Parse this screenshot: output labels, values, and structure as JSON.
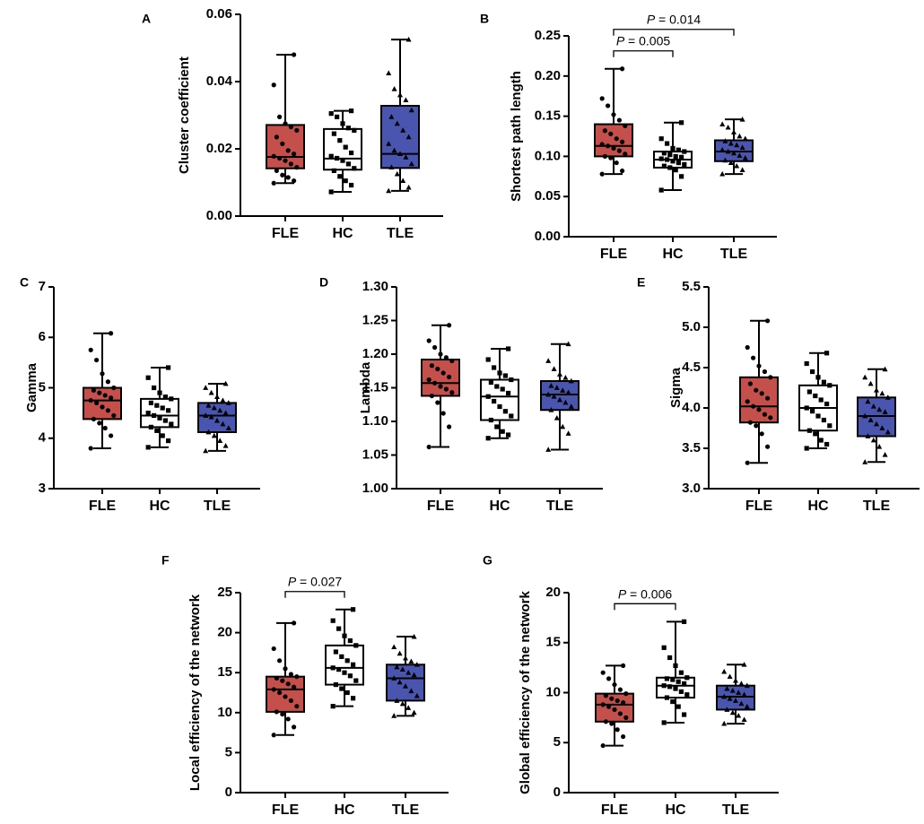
{
  "colors": {
    "FLE": "#c5504b",
    "HC": "#ffffff",
    "TLE": "#4a55b0",
    "axis": "#000000"
  },
  "chart_data": [
    {
      "id": "A",
      "panel_label": "A",
      "type": "box",
      "ylabel": "Cluster coefficient",
      "categories": [
        "FLE",
        "HC",
        "TLE"
      ],
      "ylim": [
        0,
        0.06
      ],
      "yticks": [
        "0.00",
        "0.02",
        "0.04",
        "0.06"
      ],
      "series": [
        {
          "name": "FLE",
          "min": 0.0098,
          "q1": 0.0142,
          "median": 0.0176,
          "q3": 0.0271,
          "max": 0.048,
          "points": [
            0.0098,
            0.0105,
            0.0115,
            0.0122,
            0.0135,
            0.0145,
            0.0155,
            0.0165,
            0.0172,
            0.0178,
            0.0185,
            0.0195,
            0.0215,
            0.0235,
            0.0255,
            0.0265,
            0.0275,
            0.0295,
            0.039,
            0.048
          ]
        },
        {
          "name": "HC",
          "min": 0.0072,
          "q1": 0.0138,
          "median": 0.0171,
          "q3": 0.0259,
          "max": 0.0313,
          "points": [
            0.0072,
            0.0092,
            0.0105,
            0.0118,
            0.0135,
            0.0142,
            0.0155,
            0.0165,
            0.0172,
            0.0178,
            0.0188,
            0.0205,
            0.0225,
            0.0245,
            0.0255,
            0.0262,
            0.0275,
            0.0295,
            0.0305,
            0.0313
          ]
        },
        {
          "name": "TLE",
          "min": 0.0075,
          "q1": 0.0143,
          "median": 0.0185,
          "q3": 0.0328,
          "max": 0.0525,
          "points": [
            0.0075,
            0.0085,
            0.0105,
            0.0125,
            0.0145,
            0.0155,
            0.0175,
            0.0185,
            0.0195,
            0.0215,
            0.0235,
            0.0255,
            0.0275,
            0.0295,
            0.0315,
            0.0345,
            0.036,
            0.0378,
            0.0425,
            0.0525
          ]
        }
      ],
      "comparisons": []
    },
    {
      "id": "B",
      "panel_label": "B",
      "type": "box",
      "ylabel": "Shortest path length",
      "categories": [
        "FLE",
        "HC",
        "TLE"
      ],
      "ylim": [
        0,
        0.25
      ],
      "yticks": [
        "0.00",
        "0.05",
        "0.10",
        "0.15",
        "0.20",
        "0.25"
      ],
      "series": [
        {
          "name": "FLE",
          "min": 0.078,
          "q1": 0.1,
          "median": 0.113,
          "q3": 0.14,
          "max": 0.209,
          "points": [
            0.078,
            0.082,
            0.092,
            0.098,
            0.1,
            0.103,
            0.107,
            0.11,
            0.113,
            0.115,
            0.118,
            0.122,
            0.128,
            0.132,
            0.138,
            0.145,
            0.152,
            0.163,
            0.172,
            0.209
          ]
        },
        {
          "name": "HC",
          "min": 0.058,
          "q1": 0.086,
          "median": 0.096,
          "q3": 0.106,
          "max": 0.142,
          "points": [
            0.058,
            0.075,
            0.083,
            0.086,
            0.088,
            0.09,
            0.092,
            0.094,
            0.096,
            0.097,
            0.099,
            0.1,
            0.102,
            0.104,
            0.106,
            0.108,
            0.11,
            0.116,
            0.122,
            0.142
          ]
        },
        {
          "name": "TLE",
          "min": 0.078,
          "q1": 0.094,
          "median": 0.106,
          "q3": 0.12,
          "max": 0.146,
          "points": [
            0.078,
            0.083,
            0.088,
            0.092,
            0.095,
            0.098,
            0.101,
            0.104,
            0.106,
            0.108,
            0.111,
            0.114,
            0.116,
            0.119,
            0.122,
            0.125,
            0.13,
            0.136,
            0.14,
            0.146
          ]
        }
      ],
      "comparisons": [
        {
          "from": "FLE",
          "to": "HC",
          "label": "= 0.005",
          "p_symbol": "P",
          "y": 0.225,
          "tier": 0
        },
        {
          "from": "FLE",
          "to": "TLE",
          "label": "= 0.014",
          "p_symbol": "P",
          "y": 0.248,
          "tier": 1
        }
      ]
    },
    {
      "id": "C",
      "panel_label": "C",
      "type": "box",
      "ylabel": "Gamma",
      "categories": [
        "FLE",
        "HC",
        "TLE"
      ],
      "ylim": [
        3,
        7
      ],
      "yticks": [
        "3",
        "4",
        "5",
        "6",
        "7"
      ],
      "series": [
        {
          "name": "FLE",
          "min": 3.8,
          "q1": 4.38,
          "median": 4.75,
          "q3": 5.0,
          "max": 6.08,
          "points": [
            3.8,
            4.05,
            4.2,
            4.3,
            4.38,
            4.45,
            4.55,
            4.62,
            4.7,
            4.75,
            4.8,
            4.85,
            4.9,
            4.95,
            5.0,
            5.12,
            5.28,
            5.55,
            5.75,
            6.08
          ]
        },
        {
          "name": "HC",
          "min": 3.82,
          "q1": 4.22,
          "median": 4.45,
          "q3": 4.78,
          "max": 5.4,
          "points": [
            3.82,
            3.95,
            4.05,
            4.15,
            4.22,
            4.28,
            4.35,
            4.4,
            4.45,
            4.5,
            4.55,
            4.6,
            4.65,
            4.7,
            4.78,
            4.82,
            4.9,
            5.0,
            5.2,
            5.4
          ]
        },
        {
          "name": "TLE",
          "min": 3.75,
          "q1": 4.12,
          "median": 4.45,
          "q3": 4.7,
          "max": 5.08,
          "points": [
            3.75,
            3.85,
            3.95,
            4.05,
            4.12,
            4.2,
            4.28,
            4.35,
            4.42,
            4.45,
            4.5,
            4.55,
            4.6,
            4.65,
            4.7,
            4.75,
            4.82,
            4.9,
            5.0,
            5.08
          ]
        }
      ],
      "comparisons": []
    },
    {
      "id": "D",
      "panel_label": "D",
      "type": "box",
      "ylabel": "Lambda",
      "categories": [
        "FLE",
        "HC",
        "TLE"
      ],
      "ylim": [
        1.0,
        1.3
      ],
      "yticks": [
        "1.00",
        "1.05",
        "1.10",
        "1.15",
        "1.20",
        "1.25",
        "1.30"
      ],
      "series": [
        {
          "name": "FLE",
          "min": 1.062,
          "q1": 1.138,
          "median": 1.157,
          "q3": 1.192,
          "max": 1.243,
          "points": [
            1.062,
            1.092,
            1.112,
            1.128,
            1.138,
            1.143,
            1.148,
            1.152,
            1.157,
            1.162,
            1.166,
            1.172,
            1.178,
            1.183,
            1.19,
            1.195,
            1.2,
            1.21,
            1.22,
            1.243
          ]
        },
        {
          "name": "HC",
          "min": 1.075,
          "q1": 1.102,
          "median": 1.137,
          "q3": 1.162,
          "max": 1.208,
          "points": [
            1.075,
            1.08,
            1.085,
            1.092,
            1.102,
            1.108,
            1.115,
            1.122,
            1.13,
            1.137,
            1.142,
            1.148,
            1.152,
            1.158,
            1.162,
            1.168,
            1.172,
            1.18,
            1.192,
            1.208
          ]
        },
        {
          "name": "TLE",
          "min": 1.058,
          "q1": 1.117,
          "median": 1.14,
          "q3": 1.16,
          "max": 1.215,
          "points": [
            1.058,
            1.082,
            1.092,
            1.105,
            1.117,
            1.122,
            1.128,
            1.132,
            1.137,
            1.14,
            1.143,
            1.146,
            1.15,
            1.153,
            1.16,
            1.165,
            1.17,
            1.178,
            1.19,
            1.215
          ]
        }
      ],
      "comparisons": []
    },
    {
      "id": "E",
      "panel_label": "E",
      "type": "box",
      "ylabel": "Sigma",
      "categories": [
        "FLE",
        "HC",
        "TLE"
      ],
      "ylim": [
        3.0,
        5.5
      ],
      "yticks": [
        "3.0",
        "3.5",
        "4.0",
        "4.5",
        "5.0",
        "5.5"
      ],
      "series": [
        {
          "name": "FLE",
          "min": 3.32,
          "q1": 3.82,
          "median": 4.02,
          "q3": 4.38,
          "max": 5.08,
          "points": [
            3.32,
            3.52,
            3.68,
            3.78,
            3.82,
            3.88,
            3.92,
            3.98,
            4.02,
            4.08,
            4.12,
            4.18,
            4.22,
            4.3,
            4.38,
            4.45,
            4.52,
            4.62,
            4.75,
            5.08
          ]
        },
        {
          "name": "HC",
          "min": 3.5,
          "q1": 3.72,
          "median": 4.0,
          "q3": 4.28,
          "max": 4.68,
          "points": [
            3.5,
            3.55,
            3.6,
            3.68,
            3.72,
            3.78,
            3.85,
            3.9,
            3.96,
            4.0,
            4.05,
            4.1,
            4.15,
            4.2,
            4.28,
            4.32,
            4.38,
            4.45,
            4.55,
            4.68
          ]
        },
        {
          "name": "TLE",
          "min": 3.33,
          "q1": 3.65,
          "median": 3.9,
          "q3": 4.13,
          "max": 4.48,
          "points": [
            3.33,
            3.42,
            3.52,
            3.6,
            3.65,
            3.7,
            3.75,
            3.8,
            3.85,
            3.9,
            3.95,
            3.98,
            4.02,
            4.08,
            4.13,
            4.18,
            4.22,
            4.3,
            4.38,
            4.48
          ]
        }
      ],
      "comparisons": []
    },
    {
      "id": "F",
      "panel_label": "F",
      "type": "box",
      "ylabel": "Local efficiency of the network",
      "categories": [
        "FLE",
        "HC",
        "TLE"
      ],
      "ylim": [
        0,
        25
      ],
      "yticks": [
        "0",
        "5",
        "10",
        "15",
        "20",
        "25"
      ],
      "series": [
        {
          "name": "FLE",
          "min": 7.2,
          "q1": 10.1,
          "median": 12.9,
          "q3": 14.5,
          "max": 21.2,
          "points": [
            7.2,
            8.2,
            9.2,
            9.8,
            10.1,
            10.8,
            11.5,
            12.0,
            12.5,
            12.9,
            13.2,
            13.6,
            14.0,
            14.3,
            14.5,
            14.8,
            15.5,
            16.5,
            18.0,
            21.2
          ]
        },
        {
          "name": "HC",
          "min": 10.8,
          "q1": 13.5,
          "median": 15.6,
          "q3": 18.4,
          "max": 22.9,
          "points": [
            10.8,
            11.8,
            12.5,
            13.0,
            13.5,
            14.0,
            14.6,
            15.0,
            15.4,
            15.6,
            16.0,
            16.5,
            17.0,
            17.6,
            18.4,
            19.0,
            19.6,
            20.5,
            21.5,
            22.9
          ]
        },
        {
          "name": "TLE",
          "min": 9.6,
          "q1": 11.5,
          "median": 14.3,
          "q3": 16.0,
          "max": 19.5,
          "points": [
            9.6,
            10.0,
            10.6,
            11.1,
            11.5,
            12.1,
            12.7,
            13.3,
            13.8,
            14.3,
            14.7,
            15.0,
            15.4,
            15.7,
            16.0,
            16.4,
            16.8,
            17.4,
            18.2,
            19.5
          ]
        }
      ],
      "comparisons": [
        {
          "from": "FLE",
          "to": "HC",
          "label": "= 0.027",
          "p_symbol": "P",
          "y": 24.0,
          "tier": 0
        }
      ]
    },
    {
      "id": "G",
      "panel_label": "G",
      "type": "box",
      "ylabel": "Global efficiency of the network",
      "categories": [
        "FLE",
        "HC",
        "TLE"
      ],
      "ylim": [
        0,
        20
      ],
      "yticks": [
        "0",
        "5",
        "10",
        "15",
        "20"
      ],
      "series": [
        {
          "name": "FLE",
          "min": 4.7,
          "q1": 7.1,
          "median": 8.8,
          "q3": 9.9,
          "max": 12.7,
          "points": [
            4.7,
            5.6,
            6.3,
            6.9,
            7.1,
            7.5,
            7.9,
            8.3,
            8.6,
            8.8,
            9.0,
            9.2,
            9.4,
            9.7,
            9.9,
            10.3,
            10.8,
            11.4,
            12.0,
            12.7
          ]
        },
        {
          "name": "HC",
          "min": 7.0,
          "q1": 9.5,
          "median": 10.7,
          "q3": 11.5,
          "max": 17.1,
          "points": [
            7.0,
            7.8,
            8.6,
            9.1,
            9.5,
            9.8,
            10.1,
            10.4,
            10.6,
            10.7,
            10.9,
            11.1,
            11.3,
            11.4,
            11.5,
            12.0,
            12.7,
            13.5,
            14.5,
            17.1
          ]
        },
        {
          "name": "TLE",
          "min": 6.9,
          "q1": 8.3,
          "median": 9.6,
          "q3": 10.7,
          "max": 12.8,
          "points": [
            6.9,
            7.3,
            7.7,
            8.0,
            8.3,
            8.6,
            8.9,
            9.2,
            9.4,
            9.6,
            9.8,
            10.0,
            10.2,
            10.4,
            10.7,
            10.9,
            11.2,
            11.6,
            12.1,
            12.8
          ]
        }
      ],
      "comparisons": [
        {
          "from": "FLE",
          "to": "HC",
          "label": "= 0.006",
          "p_symbol": "P",
          "y": 19.0,
          "tier": 0
        }
      ]
    }
  ]
}
